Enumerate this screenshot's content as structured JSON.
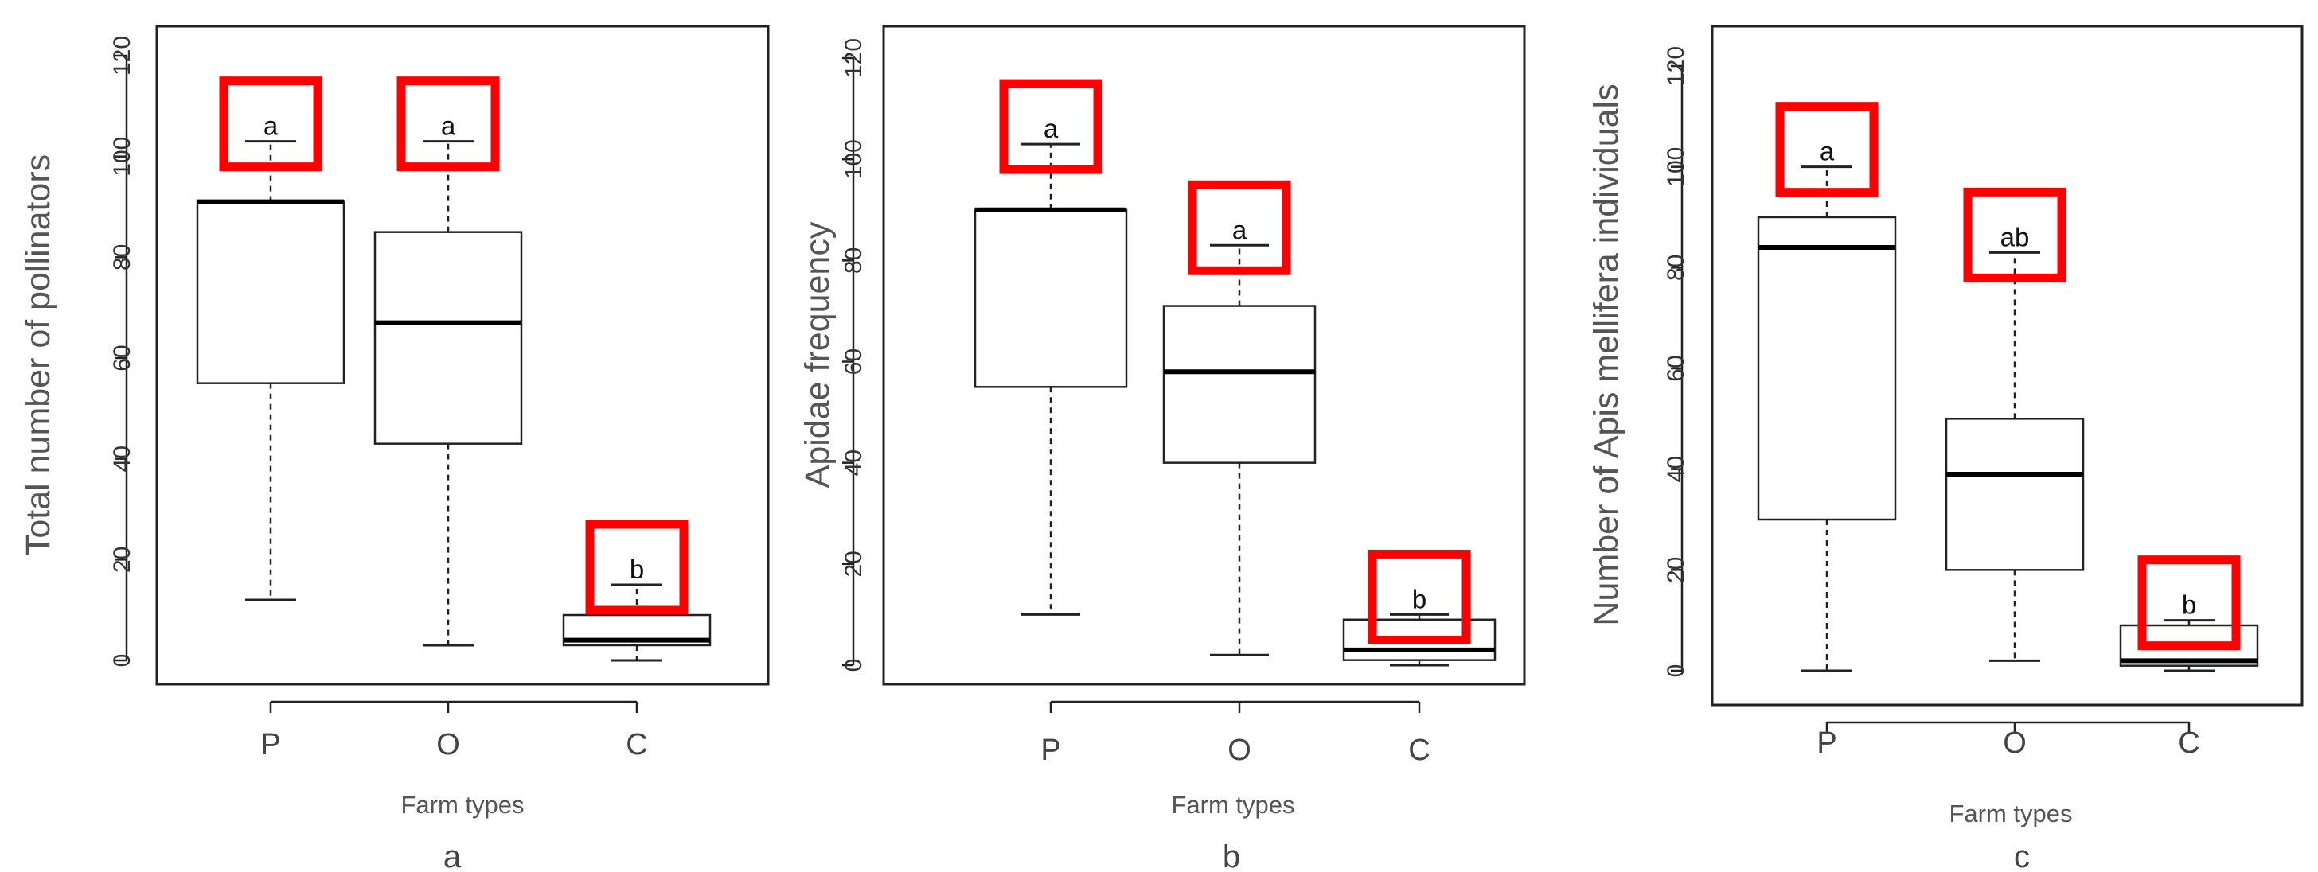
{
  "style": {
    "highlight_color": "#ff0000",
    "box_stroke": "#222222",
    "axis_title_color": "#555555",
    "background": "#ffffff"
  },
  "chart_data": [
    {
      "type": "boxplot",
      "ylabel": "Total number of pollinators",
      "xlabel": "Farm types",
      "panel_label": "a",
      "ylim": [
        0,
        120
      ],
      "yticks": [
        0,
        20,
        40,
        60,
        80,
        100,
        120
      ],
      "categories": [
        "P",
        "O",
        "C"
      ],
      "boxes": [
        {
          "category": "P",
          "min": 12,
          "q1": 55,
          "median": 91,
          "q3": 91,
          "max": 103,
          "significance": "a"
        },
        {
          "category": "O",
          "min": 3,
          "q1": 43,
          "median": 67,
          "q3": 85,
          "max": 103,
          "significance": "a"
        },
        {
          "category": "C",
          "min": 0,
          "q1": 3,
          "median": 4,
          "q3": 9,
          "max": 15,
          "significance": "b"
        }
      ]
    },
    {
      "type": "boxplot",
      "ylabel": "Apidae frequency",
      "xlabel": "Farm types",
      "panel_label": "b",
      "ylim": [
        0,
        120
      ],
      "yticks": [
        0,
        20,
        40,
        60,
        80,
        100,
        120
      ],
      "categories": [
        "P",
        "O",
        "C"
      ],
      "boxes": [
        {
          "category": "P",
          "min": 10,
          "q1": 55,
          "median": 90,
          "q3": 90,
          "max": 103,
          "significance": "a"
        },
        {
          "category": "O",
          "min": 2,
          "q1": 40,
          "median": 58,
          "q3": 71,
          "max": 83,
          "significance": "a"
        },
        {
          "category": "C",
          "min": 0,
          "q1": 1,
          "median": 3,
          "q3": 9,
          "max": 10,
          "significance": "b"
        }
      ]
    },
    {
      "type": "boxplot",
      "ylabel": "Number of Apis mellifera individuals",
      "xlabel": "Farm types",
      "panel_label": "c",
      "ylim": [
        0,
        120
      ],
      "yticks": [
        0,
        20,
        40,
        60,
        80,
        100,
        120
      ],
      "categories": [
        "P",
        "O",
        "C"
      ],
      "boxes": [
        {
          "category": "P",
          "min": 0,
          "q1": 30,
          "median": 84,
          "q3": 90,
          "max": 100,
          "significance": "a"
        },
        {
          "category": "O",
          "min": 2,
          "q1": 20,
          "median": 39,
          "q3": 50,
          "max": 83,
          "significance": "ab"
        },
        {
          "category": "C",
          "min": 0,
          "q1": 1,
          "median": 2,
          "q3": 9,
          "max": 10,
          "significance": "b"
        }
      ]
    }
  ]
}
